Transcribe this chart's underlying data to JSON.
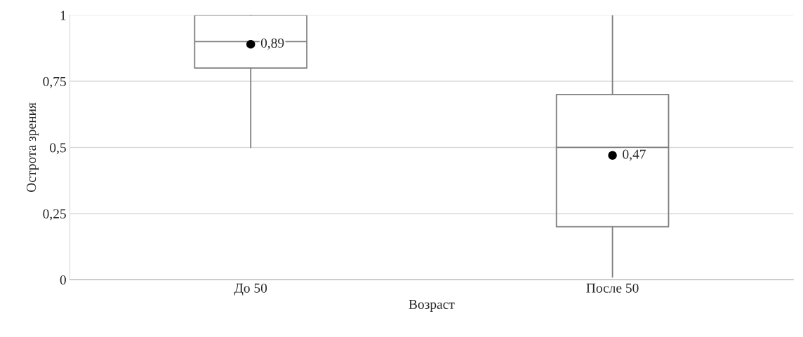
{
  "chart_data": {
    "type": "box",
    "xlabel": "Возраст",
    "ylabel": "Острота зрения",
    "categories": [
      "До 50",
      "После 50"
    ],
    "series": [
      {
        "color": "#7f7f7f",
        "boxes": [
          {
            "low": 0.5,
            "q1": 0.8,
            "median": 0.9,
            "q3": 1,
            "high": 1,
            "mean": 0.89
          },
          {
            "low": 0.01,
            "q1": 0.2,
            "median": 0.5,
            "q3": 0.7,
            "high": 1,
            "mean": 0.47
          }
        ]
      }
    ],
    "ylim": [
      0,
      1
    ],
    "yticks": [
      0,
      {
        "value": 0.25,
        "label": "0,25"
      },
      {
        "value": 0.5,
        "label": "0,5"
      },
      {
        "value": 0.75,
        "label": "0,75"
      },
      1
    ],
    "grid": "y",
    "marker": "circle",
    "legend": false,
    "annotations": [
      "0,89",
      "0,47"
    ]
  }
}
